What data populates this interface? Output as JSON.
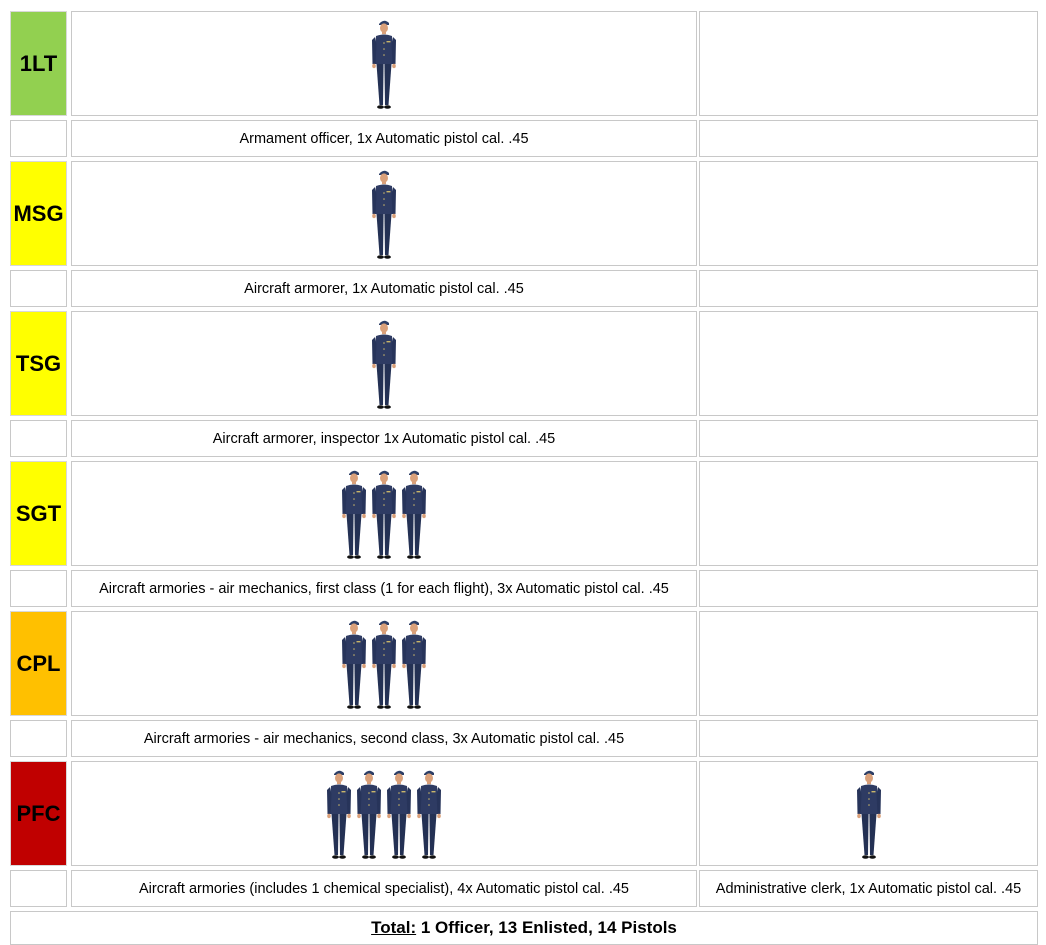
{
  "rows": [
    {
      "rank": "1LT",
      "color": "#92d050",
      "main_count": 1,
      "side_count": 0,
      "desc_main": "Armament officer, 1x Automatic pistol cal. .45",
      "desc_side": ""
    },
    {
      "rank": "MSG",
      "color": "#ffff00",
      "main_count": 1,
      "side_count": 0,
      "desc_main": "Aircraft armorer, 1x Automatic pistol cal. .45",
      "desc_side": ""
    },
    {
      "rank": "TSG",
      "color": "#ffff00",
      "main_count": 1,
      "side_count": 0,
      "desc_main": "Aircraft armorer, inspector 1x Automatic pistol cal. .45",
      "desc_side": ""
    },
    {
      "rank": "SGT",
      "color": "#ffff00",
      "main_count": 3,
      "side_count": 0,
      "desc_main": "Aircraft armories - air mechanics, first class (1 for each flight), 3x Automatic pistol cal. .45",
      "desc_side": ""
    },
    {
      "rank": "CPL",
      "color": "#ffc000",
      "main_count": 3,
      "side_count": 0,
      "desc_main": "Aircraft armories - air mechanics, second class, 3x Automatic pistol cal. .45",
      "desc_side": ""
    },
    {
      "rank": "PFC",
      "color": "#c00000",
      "main_count": 4,
      "side_count": 1,
      "desc_main": "Aircraft armories (includes 1 chemical specialist), 4x Automatic pistol cal. .45",
      "desc_side": "Administrative clerk, 1x Automatic pistol cal. .45"
    }
  ],
  "total": {
    "label": "Total:",
    "text": " 1 Officer, 13 Enlisted, 14 Pistols"
  },
  "icons": {
    "figure": "airman-uniform-icon"
  }
}
